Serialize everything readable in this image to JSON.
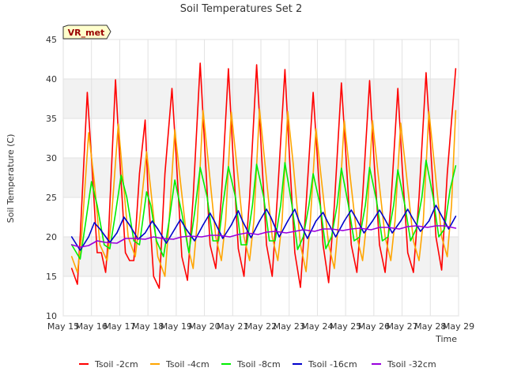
{
  "chart_data": {
    "type": "line",
    "title": "Soil Temperatures Set 2",
    "xlabel": "Time",
    "ylabel": "Soil Temperature (C)",
    "station_label": "VR_met",
    "xlim": [
      0,
      14
    ],
    "ylim": [
      10,
      45
    ],
    "yticks": [
      10,
      15,
      20,
      25,
      30,
      35,
      40,
      45
    ],
    "x_tick_labels": [
      "May 15",
      "May 16",
      "May 17",
      "May 18",
      "May 19",
      "May 20",
      "May 21",
      "May 22",
      "May 23",
      "May 24",
      "May 25",
      "May 26",
      "May 27",
      "May 28",
      "May 29"
    ],
    "grid": true,
    "legend_position": "bottom",
    "series": [
      {
        "name": "Tsoil -2cm",
        "color": "#ff0000",
        "x": [
          0.3,
          0.5,
          0.6,
          0.85,
          1.0,
          1.2,
          1.35,
          1.5,
          1.6,
          1.85,
          2.0,
          2.2,
          2.35,
          2.5,
          2.7,
          2.9,
          3.0,
          3.2,
          3.4,
          3.6,
          3.85,
          4.0,
          4.2,
          4.4,
          4.6,
          4.85,
          5.0,
          5.2,
          5.4,
          5.6,
          5.85,
          6.0,
          6.2,
          6.4,
          6.6,
          6.85,
          7.0,
          7.2,
          7.4,
          7.6,
          7.85,
          8.0,
          8.2,
          8.4,
          8.6,
          8.85,
          9.0,
          9.2,
          9.4,
          9.6,
          9.85,
          10.0,
          10.2,
          10.4,
          10.6,
          10.85,
          11.0,
          11.2,
          11.4,
          11.6,
          11.85,
          12.0,
          12.2,
          12.4,
          12.6,
          12.85,
          13.0,
          13.2,
          13.4,
          13.6,
          13.9
        ],
        "values": [
          16.0,
          14.0,
          20.0,
          38.3,
          30.0,
          18.0,
          18.0,
          15.5,
          20.0,
          39.9,
          30.0,
          18.0,
          17.0,
          17.0,
          28.0,
          34.8,
          26.0,
          15.0,
          13.5,
          28.0,
          38.8,
          30.0,
          17.5,
          14.5,
          25.0,
          42.0,
          32.0,
          19.0,
          16.0,
          25.0,
          41.3,
          31.0,
          18.5,
          15.0,
          25.0,
          41.8,
          32.0,
          19.0,
          15.0,
          26.0,
          41.2,
          31.0,
          18.0,
          13.6,
          24.0,
          38.3,
          30.0,
          19.0,
          14.2,
          24.0,
          39.5,
          31.0,
          19.0,
          15.5,
          25.0,
          39.8,
          30.0,
          19.0,
          15.5,
          24.0,
          38.8,
          29.0,
          18.0,
          15.5,
          25.0,
          40.8,
          32.0,
          20.0,
          15.8,
          28.0,
          41.3
        ]
      },
      {
        "name": "Tsoil -4cm",
        "color": "#ffa500",
        "x": [
          0.3,
          0.5,
          0.65,
          0.9,
          1.1,
          1.3,
          1.55,
          1.7,
          1.95,
          2.1,
          2.3,
          2.55,
          2.7,
          2.95,
          3.1,
          3.35,
          3.6,
          3.75,
          3.95,
          4.15,
          4.4,
          4.6,
          4.75,
          4.95,
          5.15,
          5.4,
          5.6,
          5.75,
          5.95,
          6.15,
          6.4,
          6.6,
          6.75,
          6.95,
          7.15,
          7.4,
          7.6,
          7.75,
          7.95,
          8.15,
          8.4,
          8.6,
          8.75,
          8.95,
          9.15,
          9.4,
          9.6,
          9.75,
          9.95,
          10.15,
          10.4,
          10.6,
          10.75,
          10.95,
          11.15,
          11.4,
          11.6,
          11.75,
          11.95,
          12.15,
          12.4,
          12.6,
          12.75,
          12.95,
          13.15,
          13.4,
          13.6,
          13.75,
          13.9
        ],
        "values": [
          17.5,
          15.5,
          20.0,
          33.2,
          27.0,
          19.0,
          17.0,
          22.0,
          34.3,
          28.0,
          20.0,
          17.5,
          22.0,
          30.8,
          26.0,
          17.5,
          15.0,
          22.0,
          33.6,
          27.0,
          19.0,
          16.0,
          22.0,
          36.0,
          29.0,
          20.0,
          17.0,
          22.0,
          35.8,
          29.0,
          20.0,
          17.0,
          22.0,
          36.2,
          29.0,
          20.0,
          17.0,
          22.0,
          35.9,
          29.0,
          19.0,
          15.6,
          22.0,
          33.7,
          27.0,
          19.0,
          16.0,
          22.0,
          34.7,
          28.0,
          20.0,
          17.0,
          22.0,
          34.7,
          28.0,
          20.0,
          17.0,
          22.0,
          34.4,
          28.0,
          19.5,
          17.0,
          22.0,
          35.9,
          29.0,
          20.0,
          17.5,
          24.0,
          36.0
        ]
      },
      {
        "name": "Tsoil -8cm",
        "color": "#00ee00",
        "x": [
          0.3,
          0.6,
          0.8,
          1.0,
          1.2,
          1.45,
          1.65,
          1.85,
          2.05,
          2.25,
          2.5,
          2.7,
          2.95,
          3.1,
          3.3,
          3.55,
          3.75,
          3.95,
          4.2,
          4.45,
          4.65,
          4.85,
          5.1,
          5.3,
          5.5,
          5.65,
          5.85,
          6.1,
          6.3,
          6.5,
          6.7,
          6.85,
          7.1,
          7.3,
          7.5,
          7.7,
          7.85,
          8.1,
          8.3,
          8.5,
          8.7,
          8.85,
          9.1,
          9.3,
          9.5,
          9.7,
          9.85,
          10.1,
          10.3,
          10.5,
          10.7,
          10.85,
          11.1,
          11.3,
          11.5,
          11.7,
          11.85,
          12.1,
          12.3,
          12.5,
          12.7,
          12.85,
          13.1,
          13.3,
          13.5,
          13.7,
          13.9
        ],
        "values": [
          19.0,
          17.2,
          22.0,
          27.0,
          24.0,
          19.0,
          18.5,
          23.0,
          27.8,
          25.0,
          19.5,
          19.0,
          25.7,
          24.0,
          19.5,
          17.5,
          22.0,
          27.2,
          23.0,
          18.0,
          23.0,
          28.8,
          25.0,
          19.5,
          19.5,
          24.0,
          28.9,
          25.0,
          19.0,
          19.0,
          24.0,
          29.2,
          25.0,
          19.5,
          19.5,
          24.0,
          29.4,
          24.0,
          18.4,
          20.0,
          24.0,
          28.0,
          24.0,
          18.5,
          20.0,
          24.0,
          28.7,
          24.0,
          19.5,
          20.0,
          24.0,
          28.8,
          24.5,
          19.5,
          20.0,
          24.0,
          28.5,
          24.0,
          19.5,
          21.0,
          25.0,
          29.7,
          25.0,
          20.0,
          21.0,
          26.0,
          29.0
        ]
      },
      {
        "name": "Tsoil -16cm",
        "color": "#0000cc",
        "x": [
          0.3,
          0.6,
          0.9,
          1.1,
          1.3,
          1.65,
          1.9,
          2.15,
          2.35,
          2.65,
          2.9,
          3.15,
          3.35,
          3.65,
          3.95,
          4.15,
          4.35,
          4.65,
          4.95,
          5.2,
          5.35,
          5.65,
          5.95,
          6.2,
          6.35,
          6.65,
          6.95,
          7.2,
          7.35,
          7.65,
          7.95,
          8.2,
          8.35,
          8.65,
          8.95,
          9.2,
          9.35,
          9.65,
          9.95,
          10.2,
          10.35,
          10.65,
          10.95,
          11.2,
          11.35,
          11.65,
          11.95,
          12.2,
          12.35,
          12.65,
          12.95,
          13.2,
          13.35,
          13.65,
          13.9
        ],
        "values": [
          20.0,
          18.3,
          20.0,
          21.8,
          21.0,
          19.3,
          20.5,
          22.5,
          21.5,
          19.7,
          20.5,
          22.0,
          21.0,
          19.2,
          21.0,
          22.2,
          21.0,
          19.5,
          21.5,
          23.0,
          22.0,
          19.8,
          21.5,
          23.3,
          22.0,
          19.9,
          22.0,
          23.5,
          22.5,
          20.0,
          22.0,
          23.5,
          22.0,
          19.8,
          22.0,
          23.1,
          22.0,
          20.0,
          22.0,
          23.4,
          22.5,
          20.5,
          22.0,
          23.4,
          22.5,
          20.5,
          22.0,
          23.5,
          22.5,
          20.7,
          22.0,
          24.0,
          23.0,
          21.0,
          22.6
        ]
      },
      {
        "name": "Tsoil -32cm",
        "color": "#9900dd",
        "x": [
          0.3,
          0.6,
          0.9,
          1.2,
          1.5,
          1.9,
          2.2,
          2.5,
          2.9,
          3.2,
          3.5,
          3.9,
          4.2,
          4.5,
          4.9,
          5.2,
          5.5,
          5.9,
          6.2,
          6.5,
          6.9,
          7.2,
          7.5,
          7.9,
          8.2,
          8.5,
          8.9,
          9.2,
          9.5,
          9.9,
          10.2,
          10.5,
          10.9,
          11.2,
          11.5,
          11.9,
          12.2,
          12.5,
          12.9,
          13.2,
          13.5,
          13.9
        ],
        "values": [
          19.0,
          18.7,
          18.9,
          19.5,
          19.3,
          19.2,
          19.8,
          19.8,
          19.7,
          20.0,
          19.8,
          19.7,
          20.0,
          20.1,
          20.0,
          20.2,
          20.2,
          20.0,
          20.3,
          20.5,
          20.3,
          20.6,
          20.7,
          20.5,
          20.7,
          20.9,
          20.7,
          21.0,
          21.0,
          20.8,
          21.0,
          21.1,
          20.9,
          21.2,
          21.2,
          21.0,
          21.3,
          21.4,
          21.2,
          21.4,
          21.4,
          21.1
        ]
      }
    ]
  }
}
